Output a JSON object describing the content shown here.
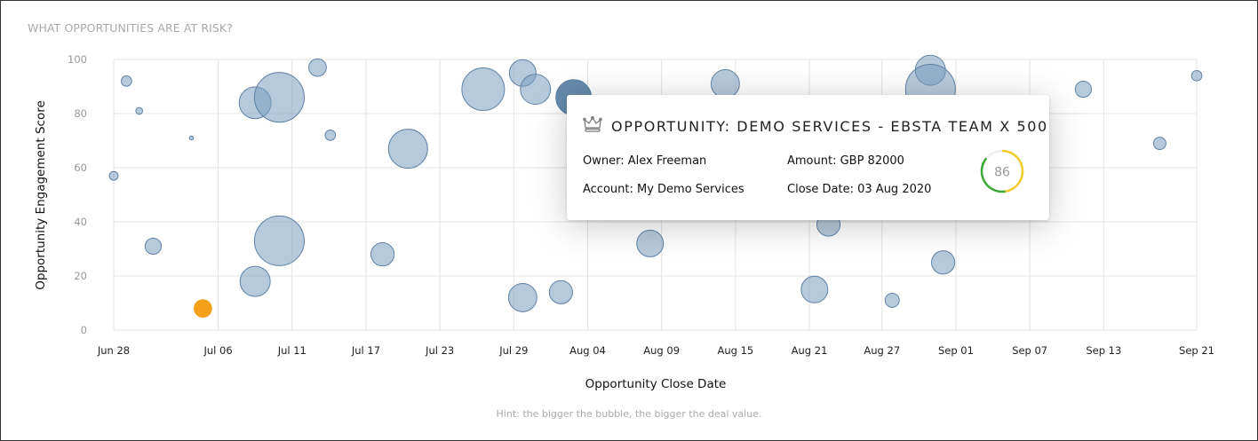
{
  "title": "WHAT OPPORTUNITIES ARE AT RISK?",
  "hint": "Hint: the bigger the bubble, the bigger the deal value.",
  "colors": {
    "bubble": "#7c9ebe",
    "bubble_stroke": "#5f82a6",
    "highlight": "#5f84a8",
    "at_risk": "#f5a01a",
    "gauge_green": "#3aa935",
    "gauge_yellow": "#f0cc2a"
  },
  "tooltip": {
    "icon": "crown-icon",
    "title": "OPPORTUNITY: DEMO SERVICES - EBSTA TEAM X 500",
    "owner": "Owner: Alex Freeman",
    "account": "Account: My Demo Services",
    "amount": "Amount: GBP 82000",
    "close_date": "Close Date: 03 Aug 2020",
    "score": "86",
    "score_value": 86
  },
  "chart_data": {
    "type": "bubble",
    "title": "WHAT OPPORTUNITIES ARE AT RISK?",
    "xlabel": "Opportunity Close Date",
    "ylabel": "Opportunity Engagement Score",
    "x_unit": "days since Jun 28 2020",
    "xlim": [
      0,
      85
    ],
    "ylim": [
      0,
      100
    ],
    "grid": true,
    "yticks": [
      0,
      20,
      40,
      60,
      80,
      100
    ],
    "xticks": [
      {
        "label": "Jun 28",
        "value": 0
      },
      {
        "label": "Jul 06",
        "value": 8.2
      },
      {
        "label": "Jul 11",
        "value": 14.0
      },
      {
        "label": "Jul 17",
        "value": 19.8
      },
      {
        "label": "Jul 23",
        "value": 25.6
      },
      {
        "label": "Jul 29",
        "value": 31.4
      },
      {
        "label": "Aug 04",
        "value": 37.2
      },
      {
        "label": "Aug 09",
        "value": 43.0
      },
      {
        "label": "Aug 15",
        "value": 48.8
      },
      {
        "label": "Aug 21",
        "value": 54.6
      },
      {
        "label": "Aug 27",
        "value": 60.3
      },
      {
        "label": "Sep 01",
        "value": 66.1
      },
      {
        "label": "Sep 07",
        "value": 71.9
      },
      {
        "label": "Sep 13",
        "value": 77.7
      },
      {
        "label": "Sep 21",
        "value": 85
      }
    ],
    "points": [
      {
        "x": 0,
        "y": 57,
        "value": 5000
      },
      {
        "x": 1.0,
        "y": 92,
        "value": 7000
      },
      {
        "x": 2.0,
        "y": 81,
        "value": 3000
      },
      {
        "x": 3.1,
        "y": 31,
        "value": 17000
      },
      {
        "x": 6.1,
        "y": 71,
        "value": 1000
      },
      {
        "x": 7.0,
        "y": 8,
        "value": 20000,
        "status": "at_risk"
      },
      {
        "x": 11.1,
        "y": 84,
        "value": 66000
      },
      {
        "x": 13.0,
        "y": 86,
        "value": 161000
      },
      {
        "x": 11.1,
        "y": 18,
        "value": 59000
      },
      {
        "x": 13.0,
        "y": 33,
        "value": 161000
      },
      {
        "x": 16.0,
        "y": 97,
        "value": 20000
      },
      {
        "x": 17.0,
        "y": 72,
        "value": 7000
      },
      {
        "x": 23.1,
        "y": 67,
        "value": 99000
      },
      {
        "x": 21.1,
        "y": 28,
        "value": 35000
      },
      {
        "x": 29.0,
        "y": 89,
        "value": 118000
      },
      {
        "x": 32.1,
        "y": 95,
        "value": 46000
      },
      {
        "x": 33.1,
        "y": 89,
        "value": 59000
      },
      {
        "x": 36.1,
        "y": 86,
        "value": 82000,
        "status": "highlighted"
      },
      {
        "x": 48.0,
        "y": 91,
        "value": 52000
      },
      {
        "x": 32.1,
        "y": 12,
        "value": 52000
      },
      {
        "x": 35.1,
        "y": 14,
        "value": 35000
      },
      {
        "x": 42.1,
        "y": 32,
        "value": 46000
      },
      {
        "x": 64.1,
        "y": 96,
        "value": 59000
      },
      {
        "x": 64.1,
        "y": 89,
        "value": 161000
      },
      {
        "x": 76.1,
        "y": 89,
        "value": 17000
      },
      {
        "x": 82.1,
        "y": 69,
        "value": 10000
      },
      {
        "x": 85,
        "y": 94,
        "value": 7000
      },
      {
        "x": 56.1,
        "y": 39,
        "value": 35000
      },
      {
        "x": 55.0,
        "y": 15,
        "value": 46000
      },
      {
        "x": 61.1,
        "y": 11,
        "value": 13000
      },
      {
        "x": 65.1,
        "y": 25,
        "value": 35000
      }
    ]
  }
}
